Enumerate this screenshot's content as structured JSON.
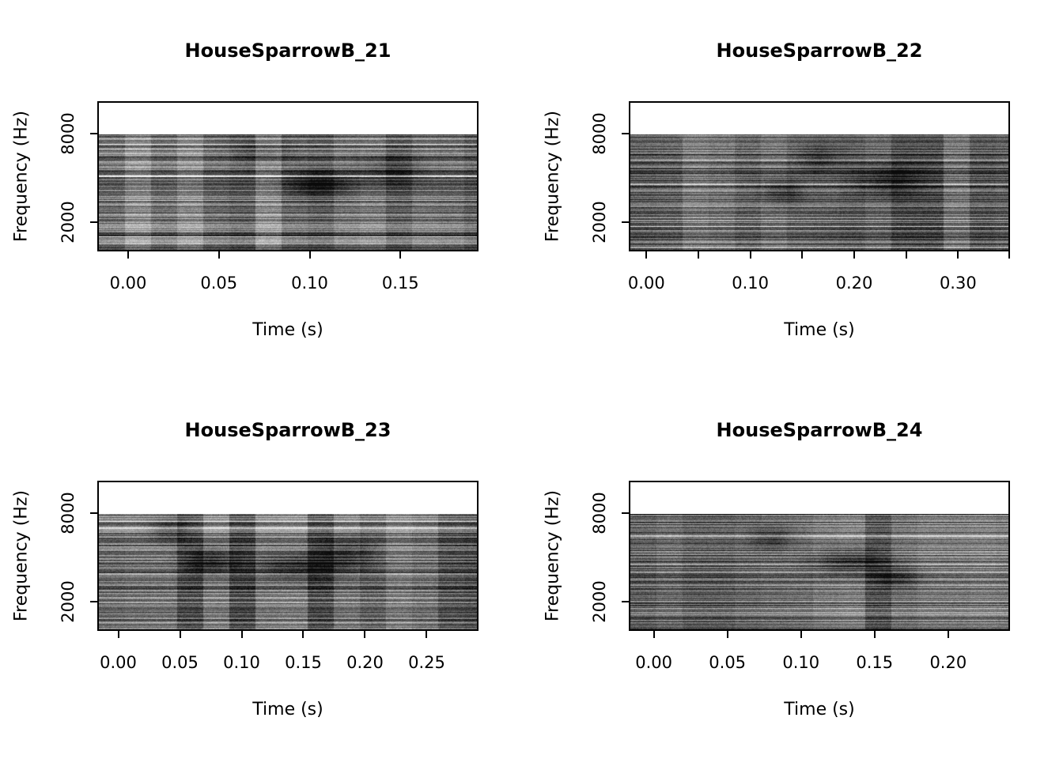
{
  "page": {
    "background": "#ffffff",
    "text_color": "#000000",
    "layout": "2x2 grid of grayscale spectrogram panels (R base graphics style)"
  },
  "chart_data": [
    {
      "type": "heatmap",
      "subtype": "spectrogram",
      "title": "HouseSparrowB_21",
      "xlabel": "Time (s)",
      "ylabel": "Frequency (Hz)",
      "x_range": [
        -0.017,
        0.193
      ],
      "x_ticks": [
        0.0,
        0.05,
        0.1,
        0.15
      ],
      "x_minor_ticks": [],
      "y_range_hz": [
        0,
        10200
      ],
      "y_ticks": [
        2000,
        8000
      ],
      "spectrogram_extent_hz": [
        0,
        8000
      ],
      "colormap": "grayscale",
      "mean_lightness": 0.46,
      "dark_regions": [
        {
          "t": 0.105,
          "f": 4600,
          "dt": 0.018,
          "df": 900,
          "strength": 0.28
        },
        {
          "t": 0.145,
          "f": 5600,
          "dt": 0.02,
          "df": 1200,
          "strength": 0.18
        },
        {
          "t": 0.075,
          "f": 6800,
          "dt": 0.015,
          "df": 900,
          "strength": 0.15
        }
      ],
      "appearance": "dense horizontal gray noise striations with vertical STFT-frame banding, signal band 0-8000 Hz, white gap above 8000 Hz"
    },
    {
      "type": "heatmap",
      "subtype": "spectrogram",
      "title": "HouseSparrowB_22",
      "xlabel": "Time (s)",
      "ylabel": "Frequency (Hz)",
      "x_range": [
        -0.017,
        0.35
      ],
      "x_ticks": [
        0.0,
        0.1,
        0.2,
        0.3
      ],
      "x_minor_ticks": [
        0.05,
        0.15,
        0.25,
        0.35
      ],
      "y_range_hz": [
        0,
        10200
      ],
      "y_ticks": [
        2000,
        8000
      ],
      "spectrogram_extent_hz": [
        0,
        8000
      ],
      "colormap": "grayscale",
      "mean_lightness": 0.4,
      "dark_regions": [
        {
          "t": 0.235,
          "f": 4800,
          "dt": 0.03,
          "df": 1100,
          "strength": 0.25
        },
        {
          "t": 0.13,
          "f": 4000,
          "dt": 0.02,
          "df": 900,
          "strength": 0.2
        },
        {
          "t": 0.165,
          "f": 6500,
          "dt": 0.02,
          "df": 1000,
          "strength": 0.15
        }
      ],
      "appearance": "dense horizontal gray noise striations with vertical STFT-frame banding, signal band 0-8000 Hz, white gap above 8000 Hz"
    },
    {
      "type": "heatmap",
      "subtype": "spectrogram",
      "title": "HouseSparrowB_23",
      "xlabel": "Time (s)",
      "ylabel": "Frequency (Hz)",
      "x_range": [
        -0.017,
        0.292
      ],
      "x_ticks": [
        0.0,
        0.05,
        0.1,
        0.15,
        0.2,
        0.25
      ],
      "x_minor_ticks": [],
      "y_range_hz": [
        0,
        10200
      ],
      "y_ticks": [
        2000,
        8000
      ],
      "spectrogram_extent_hz": [
        0,
        8000
      ],
      "colormap": "grayscale",
      "mean_lightness": 0.43,
      "dark_regions": [
        {
          "t": 0.075,
          "f": 4700,
          "dt": 0.02,
          "df": 900,
          "strength": 0.32
        },
        {
          "t": 0.145,
          "f": 4400,
          "dt": 0.035,
          "df": 1000,
          "strength": 0.28
        },
        {
          "t": 0.04,
          "f": 7000,
          "dt": 0.015,
          "df": 900,
          "strength": 0.2
        },
        {
          "t": 0.185,
          "f": 5200,
          "dt": 0.02,
          "df": 1200,
          "strength": 0.22
        }
      ],
      "appearance": "dense horizontal gray noise striations with vertical STFT-frame banding, signal band 0-8000 Hz, white gap above 8000 Hz"
    },
    {
      "type": "heatmap",
      "subtype": "spectrogram",
      "title": "HouseSparrowB_24",
      "xlabel": "Time (s)",
      "ylabel": "Frequency (Hz)",
      "x_range": [
        -0.017,
        0.242
      ],
      "x_ticks": [
        0.0,
        0.05,
        0.1,
        0.15,
        0.2
      ],
      "x_minor_ticks": [],
      "y_range_hz": [
        0,
        10200
      ],
      "y_ticks": [
        2000,
        8000
      ],
      "spectrogram_extent_hz": [
        0,
        8000
      ],
      "colormap": "grayscale",
      "mean_lightness": 0.43,
      "dark_regions": [
        {
          "t": 0.135,
          "f": 4700,
          "dt": 0.025,
          "df": 900,
          "strength": 0.3
        },
        {
          "t": 0.08,
          "f": 6300,
          "dt": 0.015,
          "df": 900,
          "strength": 0.18
        },
        {
          "t": 0.165,
          "f": 3600,
          "dt": 0.015,
          "df": 700,
          "strength": 0.2
        }
      ],
      "appearance": "dense horizontal gray noise striations with vertical STFT-frame banding, signal band 0-8000 Hz, white gap above 8000 Hz"
    }
  ]
}
